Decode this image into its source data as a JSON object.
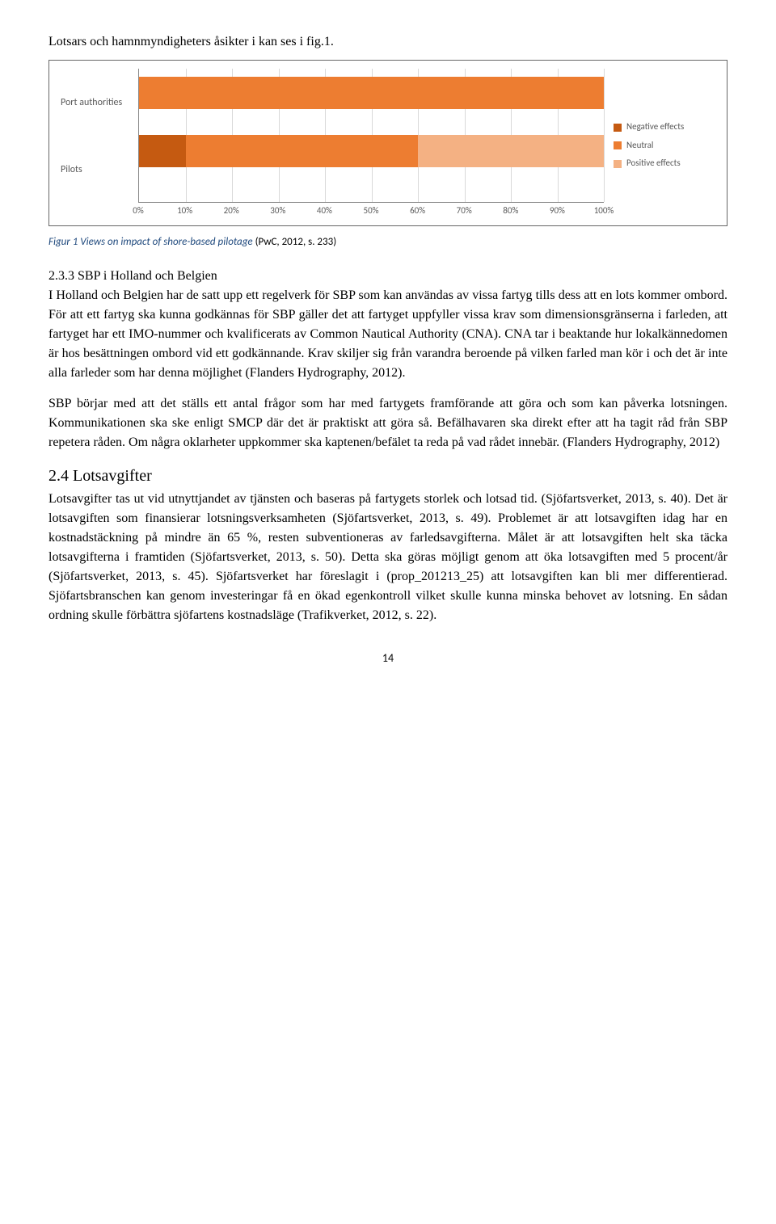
{
  "intro": "Lotsars och hamnmyndigheters åsikter i kan ses i fig.1.",
  "chart": {
    "type": "stacked-bar-horizontal",
    "height": 190,
    "categories": [
      "Port authorities",
      "Pilots"
    ],
    "series": [
      {
        "name": "Negative effects",
        "color": "#c55a11"
      },
      {
        "name": "Neutral",
        "color": "#ed7d31"
      },
      {
        "name": "Positive effects",
        "color": "#f4b183"
      }
    ],
    "data": [
      [
        0,
        100,
        0
      ],
      [
        10,
        50,
        40
      ]
    ],
    "bar_positions_pct": [
      18,
      62
    ],
    "x_ticks": [
      "0%",
      "10%",
      "20%",
      "30%",
      "40%",
      "50%",
      "60%",
      "70%",
      "80%",
      "90%",
      "100%"
    ],
    "grid_color": "#d9d9d9",
    "axis_color": "#888888",
    "text_color": "#595959",
    "background_color": "#ffffff",
    "font_family": "Calibri",
    "font_size": 12
  },
  "caption": {
    "prefix": "Figur 1 Views on impact of shore-based pilotage ",
    "ref": "(PwC, 2012, s. 233)"
  },
  "section233_num": "2.3.3 SBP i Holland och Belgien",
  "p1": "I Holland och Belgien har de satt upp ett regelverk för SBP som kan användas av vissa fartyg tills dess att en lots kommer ombord. För att ett fartyg ska kunna godkännas för SBP gäller det att fartyget uppfyller vissa krav som dimensionsgränserna i farleden, att fartyget har ett IMO-nummer och kvalificerats av Common Nautical Authority (CNA). CNA tar i beaktande hur lokalkännedomen är hos besättningen ombord vid ett godkännande. Krav skiljer sig från varandra beroende på vilken farled man kör i och det är inte alla farleder som har denna möjlighet (Flanders Hydrography, 2012).",
  "p2": "SBP börjar med att det ställs ett antal frågor som har med fartygets framförande att göra och som kan påverka lotsningen. Kommunikationen ska ske enligt SMCP där det är praktiskt att göra så. Befälhavaren ska direkt efter att ha tagit råd från SBP repetera råden. Om några oklarheter uppkommer ska kaptenen/befälet ta reda på vad rådet innebär. (Flanders Hydrography, 2012)",
  "subhead": "2.4 Lotsavgifter",
  "p3": "Lotsavgifter tas ut vid utnyttjandet av tjänsten och baseras på fartygets storlek och lotsad tid. (Sjöfartsverket, 2013, s. 40). Det är lotsavgiften som finansierar lotsningsverksamheten (Sjöfartsverket, 2013, s. 49). Problemet är att lotsavgiften idag har en kostnadstäckning på mindre än 65 %, resten subventioneras av farledsavgifterna. Målet är att lotsavgiften helt ska täcka lotsavgifterna i framtiden (Sjöfartsverket, 2013, s. 50). Detta ska göras möjligt genom att öka lotsavgiften med 5 procent/år (Sjöfartsverket, 2013, s. 45). Sjöfartsverket har föreslagit i (prop_201213_25) att lotsavgiften kan bli mer differentierad. Sjöfartsbranschen kan genom investeringar få en ökad egenkontroll vilket skulle kunna minska behovet av lotsning. En sådan ordning skulle förbättra sjöfartens kostnadsläge (Trafikverket, 2012, s. 22).",
  "page_number": "14"
}
